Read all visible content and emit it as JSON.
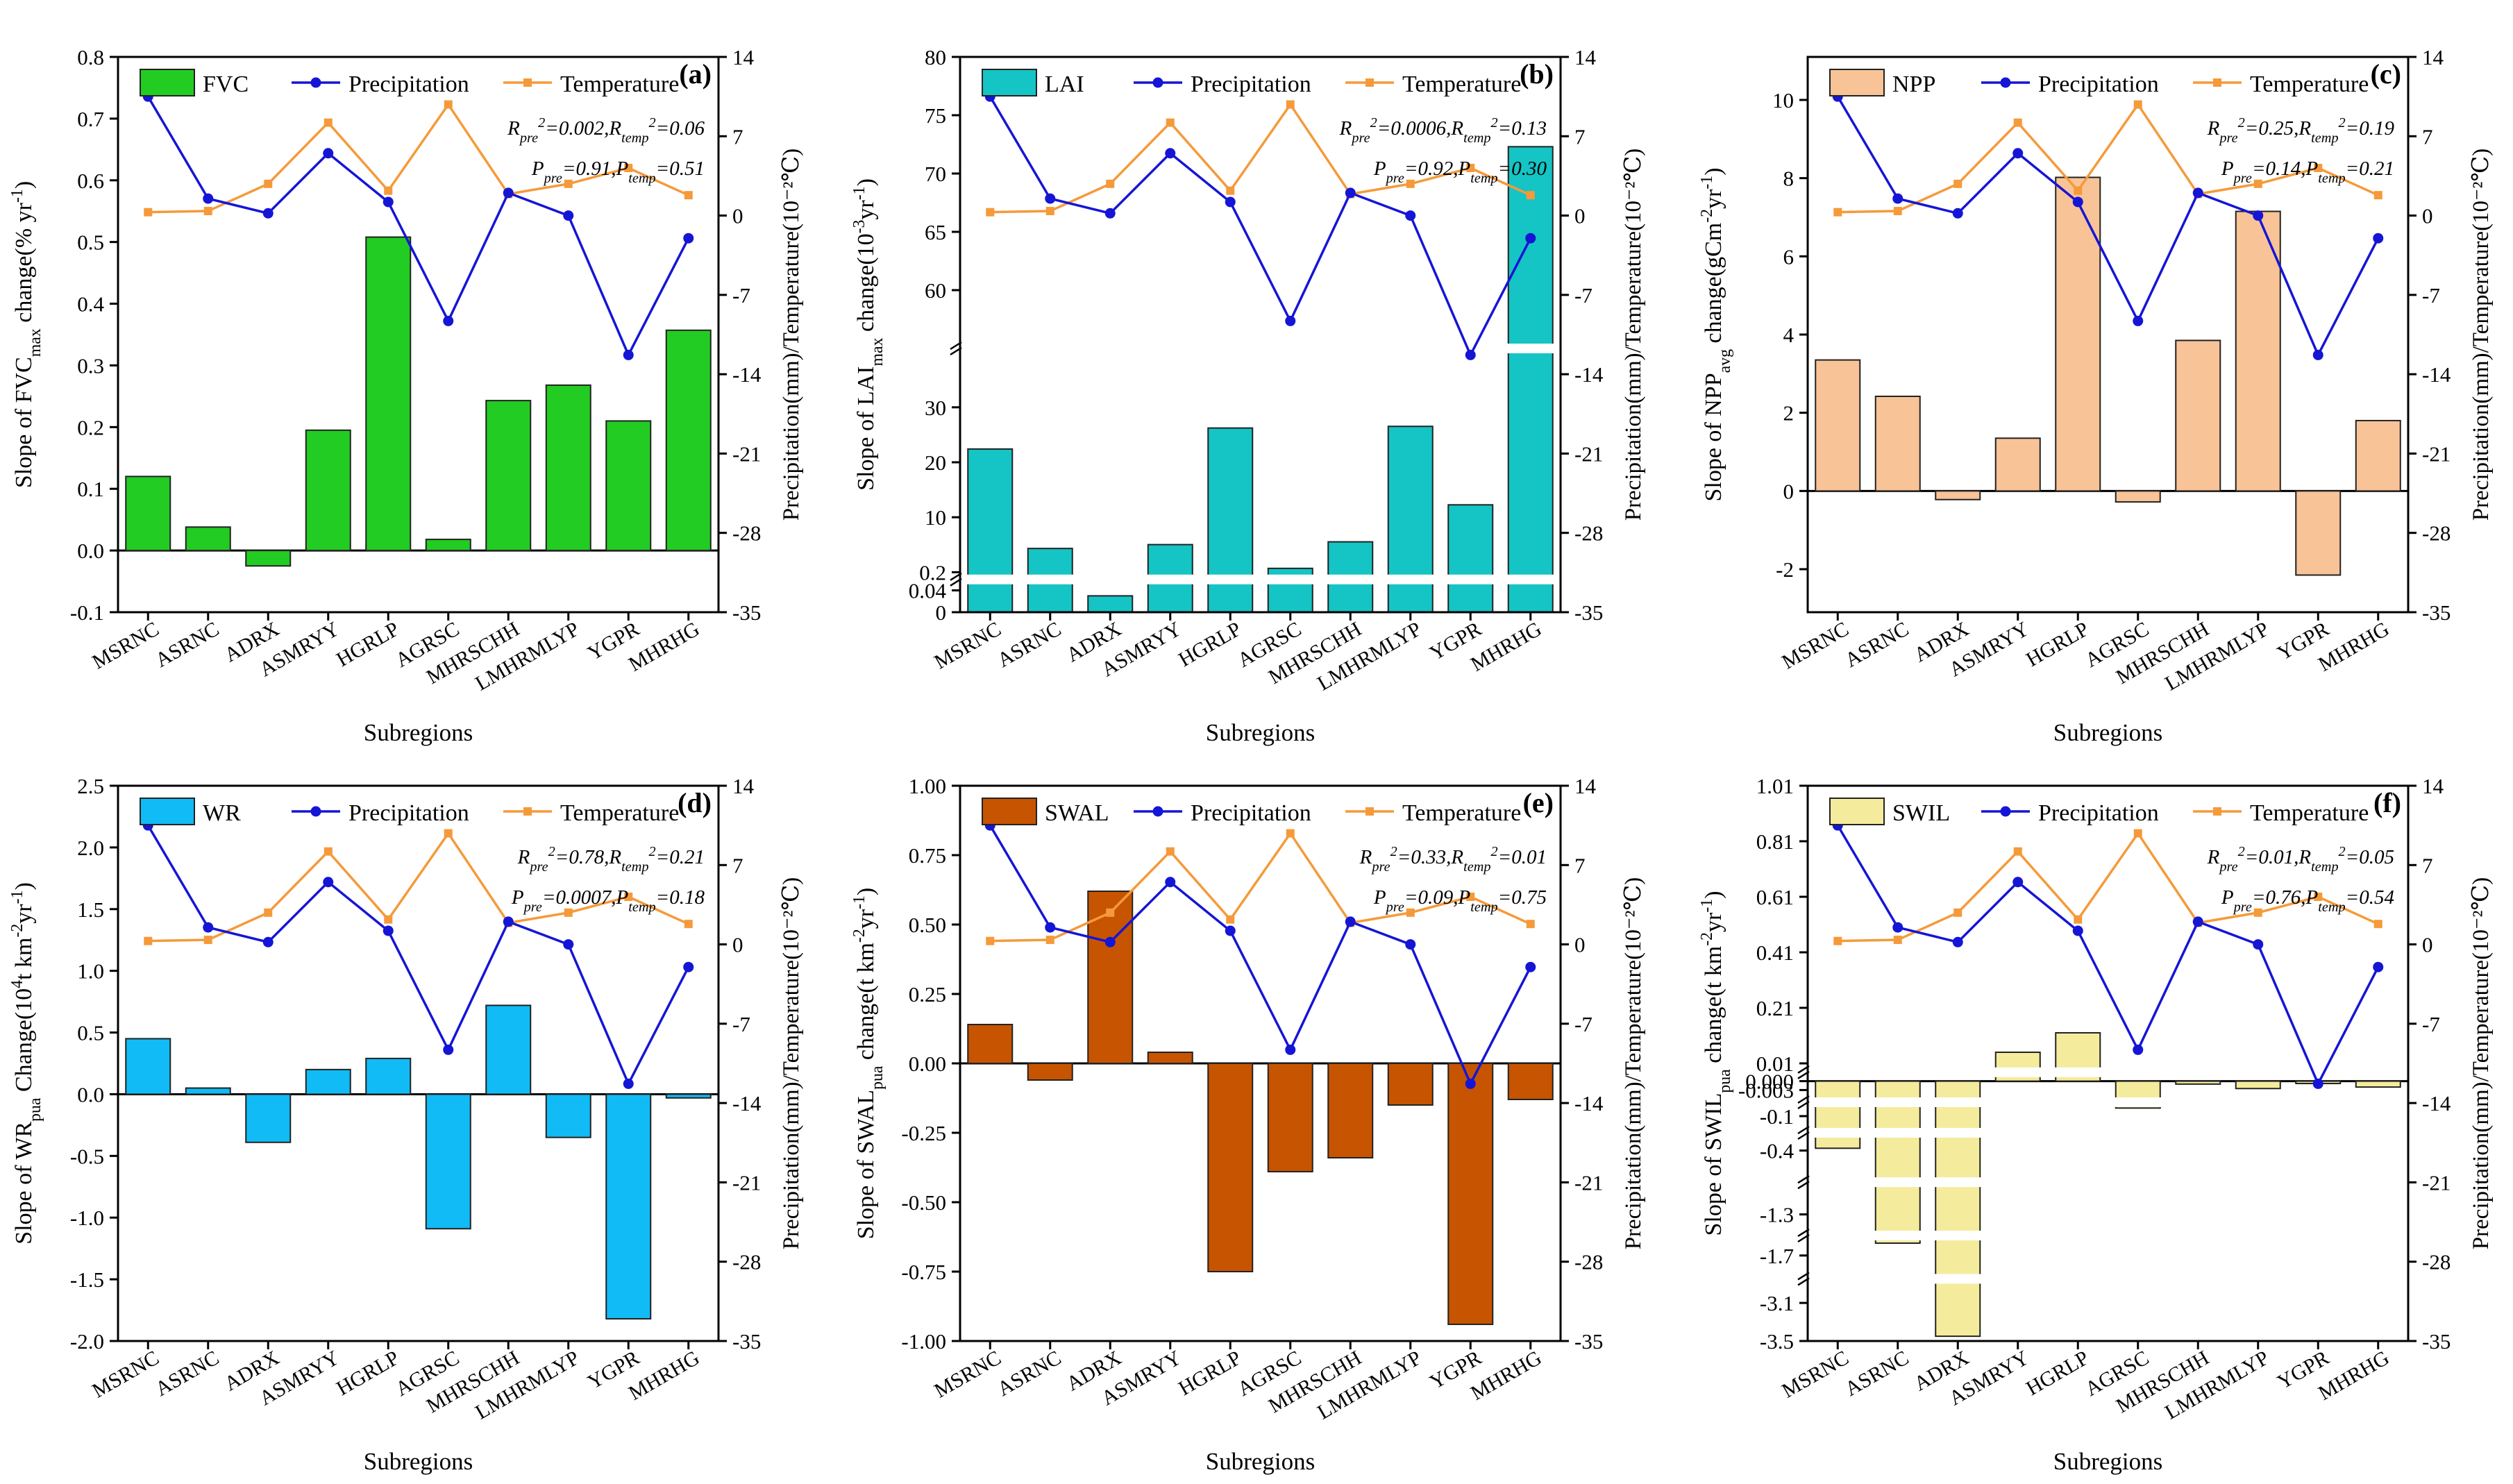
{
  "figure": {
    "categories": [
      "MSRNC",
      "ASRNC",
      "ADRX",
      "ASMRYY",
      "HGRLP",
      "AGRSC",
      "MHRSCHH",
      "LMHRMLYP",
      "YGPR",
      "MHRHG"
    ],
    "precipitation_label": "Precipitation",
    "temperature_label": "Temperature",
    "xlabel": "Subregions",
    "right_ylabel": "Precipitation(mm)/Temperature(10⁻²℃)",
    "right_ticks": [
      -35,
      -28,
      -21,
      -14,
      -7,
      0,
      7,
      14
    ],
    "line_colors": {
      "precipitation": "#1515d6",
      "temperature": "#f59a3a"
    }
  },
  "chart_data": [
    {
      "type": "bar",
      "panel_label": "(a)",
      "bar_name": "FVC",
      "bar_color": "#22cc22",
      "ylabel_parts": [
        "Slope of FVC",
        "max",
        " change(% yr",
        "-1",
        ")"
      ],
      "y_ticks": [
        "-0.1",
        "0.0",
        "0.1",
        "0.2",
        "0.3",
        "0.4",
        "0.5",
        "0.6",
        "0.7",
        "0.8"
      ],
      "ylim": [
        -0.1,
        0.8
      ],
      "values": [
        0.12,
        0.038,
        -0.025,
        0.195,
        0.508,
        0.018,
        0.243,
        0.268,
        0.21,
        0.357
      ],
      "precipitation": [
        10.5,
        1.5,
        0.2,
        5.5,
        1.2,
        -9.3,
        2,
        0,
        -12.3,
        -2
      ],
      "temperature": [
        0.3,
        0.4,
        2.8,
        8.2,
        2.2,
        9.8,
        1.9,
        2.8,
        4.2,
        1.8
      ],
      "stats": [
        "R",
        "pre",
        "2",
        "=0.002,R",
        "temp",
        "2",
        "=0.06"
      ],
      "pvals": [
        "P",
        "pre",
        "=0.91,P",
        "temp",
        "=0.51"
      ]
    },
    {
      "type": "bar",
      "panel_label": "(b)",
      "bar_name": "LAI",
      "bar_color": "#15c4c4",
      "ylabel_parts": [
        "Slope of LAI",
        "max",
        " change(10",
        "-3",
        "yr",
        "-1",
        ")"
      ],
      "y_ticks": [
        "0",
        "0.04",
        "0.2",
        "10",
        "20",
        "30",
        "60",
        "65",
        "70",
        "75",
        "80"
      ],
      "ylim": [
        0,
        80
      ],
      "values": [
        22.5,
        4.5,
        0.03,
        5.2,
        26.3,
        0.9,
        5.7,
        26.6,
        12.4,
        72.3
      ],
      "precipitation": [
        10.5,
        1.5,
        0.2,
        5.5,
        1.2,
        -9.3,
        2,
        0,
        -12.3,
        -2
      ],
      "temperature": [
        0.3,
        0.4,
        2.8,
        8.2,
        2.2,
        9.8,
        1.9,
        2.8,
        4.2,
        1.8
      ],
      "stats": [
        "R",
        "pre",
        "2",
        "=0.0006,R",
        "temp",
        "2",
        "=0.13"
      ],
      "pvals": [
        "P",
        "pre",
        "=0.92,P",
        "temp",
        "=0.30"
      ]
    },
    {
      "type": "bar",
      "panel_label": "(c)",
      "bar_name": "NPP",
      "bar_color": "#f8c397",
      "ylabel_parts": [
        "Slope of NPP",
        "avg",
        " change(gCm",
        "-2",
        "yr",
        "-1",
        ")"
      ],
      "y_ticks": [
        "-2",
        "0",
        "2",
        "4",
        "6",
        "8",
        "10"
      ],
      "ylim": [
        -3.1,
        11.1
      ],
      "values": [
        3.35,
        2.42,
        -0.22,
        1.35,
        8.02,
        -0.28,
        3.85,
        7.15,
        -2.15,
        1.8
      ],
      "precipitation": [
        10.5,
        1.5,
        0.2,
        5.5,
        1.2,
        -9.3,
        2,
        0,
        -12.3,
        -2
      ],
      "temperature": [
        0.3,
        0.4,
        2.8,
        8.2,
        2.2,
        9.8,
        1.9,
        2.8,
        4.2,
        1.8
      ],
      "stats": [
        "R",
        "pre",
        "2",
        "=0.25,R",
        "temp",
        "2",
        "=0.19"
      ],
      "pvals": [
        "P",
        "pre",
        "=0.14,P",
        "temp",
        "=0.21"
      ]
    },
    {
      "type": "bar",
      "panel_label": "(d)",
      "bar_name": "WR",
      "bar_color": "#11bbf5",
      "ylabel_parts": [
        "Slope of WR",
        "pua",
        " Change(10",
        "4",
        "t km",
        "-2",
        "yr",
        "-1",
        ")"
      ],
      "y_ticks": [
        "-2.0",
        "-1.5",
        "-1.0",
        "-0.5",
        "0.0",
        "0.5",
        "1.0",
        "1.5",
        "2.0",
        "2.5"
      ],
      "ylim": [
        -2.0,
        2.5
      ],
      "values": [
        0.45,
        0.05,
        -0.39,
        0.2,
        0.29,
        -1.09,
        0.72,
        -0.35,
        -1.82,
        -0.03
      ],
      "precipitation": [
        10.5,
        1.5,
        0.2,
        5.5,
        1.2,
        -9.3,
        2,
        0,
        -12.3,
        -2
      ],
      "temperature": [
        0.3,
        0.4,
        2.8,
        8.2,
        2.2,
        9.8,
        1.9,
        2.8,
        4.2,
        1.8
      ],
      "stats": [
        "R",
        "pre",
        "2",
        "=0.78,R",
        "temp",
        "2",
        "=0.21"
      ],
      "pvals": [
        "P",
        "pre",
        "=0.0007,P",
        "temp",
        "=0.18"
      ]
    },
    {
      "type": "bar",
      "panel_label": "(e)",
      "bar_name": "SWAL",
      "bar_color": "#c75400",
      "ylabel_parts": [
        "Slope of SWAL",
        "pua",
        " change(t km",
        "-2",
        "yr",
        "-1",
        ")"
      ],
      "y_ticks": [
        "-1.00",
        "-0.75",
        "-0.50",
        "-0.25",
        "0.00",
        "0.25",
        "0.50",
        "0.75",
        "1.00"
      ],
      "ylim": [
        -1.0,
        1.0
      ],
      "values": [
        0.14,
        -0.06,
        0.62,
        0.04,
        -0.75,
        -0.39,
        -0.34,
        -0.15,
        -0.94,
        -0.13
      ],
      "precipitation": [
        10.5,
        1.5,
        0.2,
        5.5,
        1.2,
        -9.3,
        2,
        0,
        -12.3,
        -2
      ],
      "temperature": [
        0.3,
        0.4,
        2.8,
        8.2,
        2.2,
        9.8,
        1.9,
        2.8,
        4.2,
        1.8
      ],
      "stats": [
        "R",
        "pre",
        "2",
        "=0.33,R",
        "temp",
        "2",
        "=0.01"
      ],
      "pvals": [
        "P",
        "pre",
        "=0.09,P",
        "temp",
        "=0.75"
      ]
    },
    {
      "type": "bar",
      "panel_label": "(f)",
      "bar_name": "SWIL",
      "bar_color": "#f4ec9c",
      "ylabel_parts": [
        "Slope of SWIL",
        "pua",
        " change(t km",
        "-2",
        "yr",
        "-1",
        ")"
      ],
      "y_ticks": [
        "-3.5",
        "-3.1",
        "-1.7",
        "-1.3",
        "-0.4",
        "-0.1",
        "-0.003",
        "0.000",
        "0.01",
        "0.21",
        "0.41",
        "0.61",
        "0.81",
        "1.01"
      ],
      "ylim": [
        -3.5,
        1.01
      ],
      "values": [
        -0.38,
        -1.58,
        -3.45,
        0.05,
        0.12,
        -0.07,
        -0.001,
        -0.0025,
        -0.0008,
        -0.002
      ],
      "precipitation": [
        10.5,
        1.5,
        0.2,
        5.5,
        1.2,
        -9.3,
        2,
        0,
        -12.3,
        -2
      ],
      "temperature": [
        0.3,
        0.4,
        2.8,
        8.2,
        2.2,
        9.8,
        1.9,
        2.8,
        4.2,
        1.8
      ],
      "stats": [
        "R",
        "pre",
        "2",
        "=0.01,R",
        "temp",
        "2",
        "=0.05"
      ],
      "pvals": [
        "P",
        "pre",
        "=0.76,P",
        "temp",
        "=0.54"
      ]
    }
  ]
}
